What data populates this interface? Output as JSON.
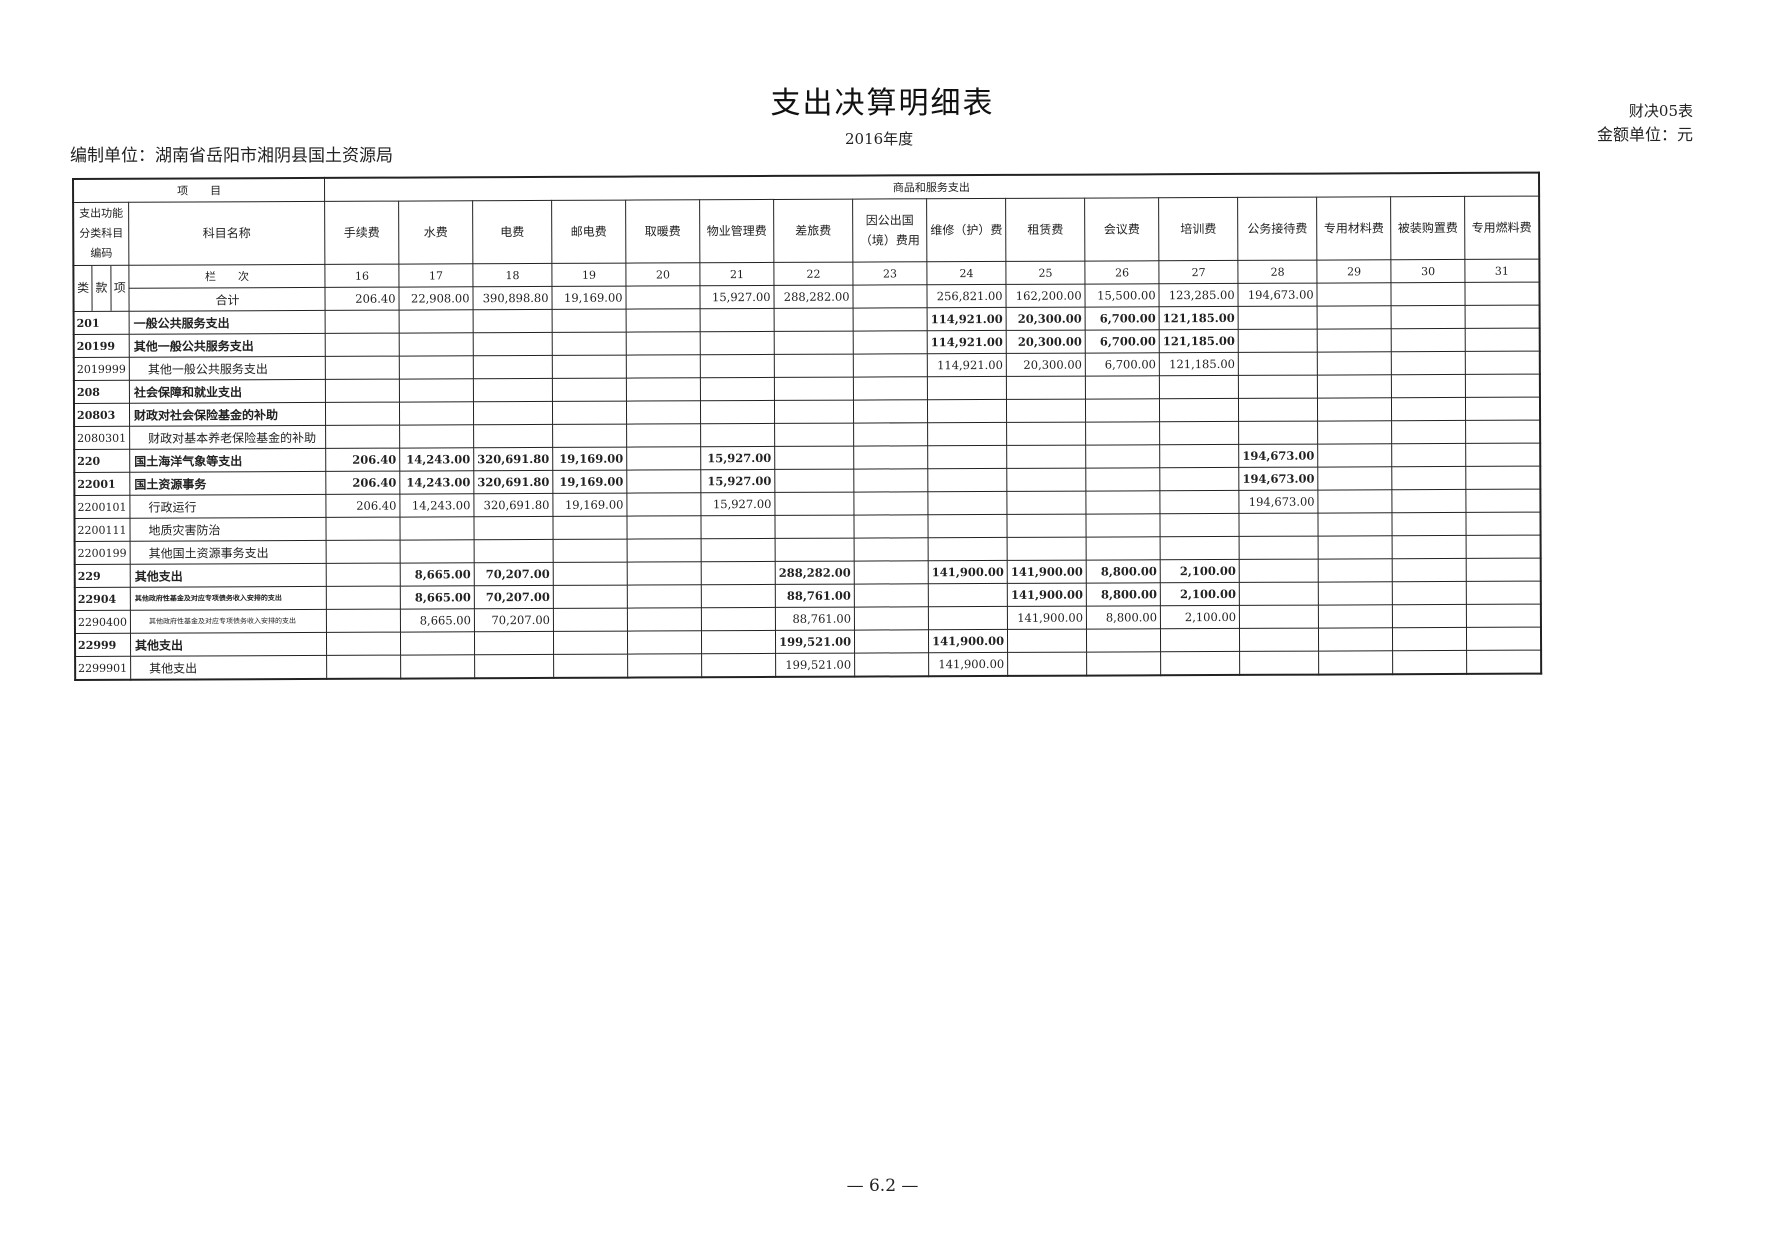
{
  "header": {
    "title": "支出决算明细表",
    "year": "2016年度",
    "form_no": "财决05表",
    "unit": "金额单位：元",
    "org": "编制单位：湖南省岳阳市湘阴县国土资源局"
  },
  "table": {
    "item_header": "项　　目",
    "group_header": "商品和服务支出",
    "code_header": "支出功能分类科目编码",
    "name_header": "科目名称",
    "lkx": [
      "类",
      "款",
      "项"
    ],
    "lanci_label": "栏　　次",
    "columns": [
      {
        "name": "手续费",
        "no": "16"
      },
      {
        "name": "水费",
        "no": "17"
      },
      {
        "name": "电费",
        "no": "18"
      },
      {
        "name": "邮电费",
        "no": "19"
      },
      {
        "name": "取暖费",
        "no": "20"
      },
      {
        "name": "物业管理费",
        "no": "21"
      },
      {
        "name": "差旅费",
        "no": "22"
      },
      {
        "name": "因公出国（境）费用",
        "no": "23"
      },
      {
        "name": "维修（护）费",
        "no": "24"
      },
      {
        "name": "租赁费",
        "no": "25"
      },
      {
        "name": "会议费",
        "no": "26"
      },
      {
        "name": "培训费",
        "no": "27"
      },
      {
        "name": "公务接待费",
        "no": "28"
      },
      {
        "name": "专用材料费",
        "no": "29"
      },
      {
        "name": "被装购置费",
        "no": "30"
      },
      {
        "name": "专用燃料费",
        "no": "31"
      }
    ],
    "rows": [
      {
        "code": "",
        "name": "合计",
        "level": "total",
        "values": [
          "206.40",
          "22,908.00",
          "390,898.80",
          "19,169.00",
          "",
          "15,927.00",
          "288,282.00",
          "",
          "256,821.00",
          "162,200.00",
          "15,500.00",
          "123,285.00",
          "194,673.00",
          "",
          "",
          ""
        ]
      },
      {
        "code": "201",
        "name": "一般公共服务支出",
        "level": "bold",
        "values": [
          "",
          "",
          "",
          "",
          "",
          "",
          "",
          "",
          "114,921.00",
          "20,300.00",
          "6,700.00",
          "121,185.00",
          "",
          "",
          "",
          ""
        ]
      },
      {
        "code": "20199",
        "name": "其他一般公共服务支出",
        "level": "bold",
        "values": [
          "",
          "",
          "",
          "",
          "",
          "",
          "",
          "",
          "114,921.00",
          "20,300.00",
          "6,700.00",
          "121,185.00",
          "",
          "",
          "",
          ""
        ]
      },
      {
        "code": "2019999",
        "name": "其他一般公共服务支出",
        "level": "sub",
        "values": [
          "",
          "",
          "",
          "",
          "",
          "",
          "",
          "",
          "114,921.00",
          "20,300.00",
          "6,700.00",
          "121,185.00",
          "",
          "",
          "",
          ""
        ]
      },
      {
        "code": "208",
        "name": "社会保障和就业支出",
        "level": "bold",
        "values": [
          "",
          "",
          "",
          "",
          "",
          "",
          "",
          "",
          "",
          "",
          "",
          "",
          "",
          "",
          "",
          ""
        ]
      },
      {
        "code": "20803",
        "name": "财政对社会保险基金的补助",
        "level": "bold",
        "values": [
          "",
          "",
          "",
          "",
          "",
          "",
          "",
          "",
          "",
          "",
          "",
          "",
          "",
          "",
          "",
          ""
        ]
      },
      {
        "code": "2080301",
        "name": "财政对基本养老保险基金的补助",
        "level": "sub",
        "values": [
          "",
          "",
          "",
          "",
          "",
          "",
          "",
          "",
          "",
          "",
          "",
          "",
          "",
          "",
          "",
          ""
        ]
      },
      {
        "code": "220",
        "name": "国土海洋气象等支出",
        "level": "bold",
        "values": [
          "206.40",
          "14,243.00",
          "320,691.80",
          "19,169.00",
          "",
          "15,927.00",
          "",
          "",
          "",
          "",
          "",
          "",
          "194,673.00",
          "",
          "",
          ""
        ]
      },
      {
        "code": "22001",
        "name": "国土资源事务",
        "level": "bold",
        "values": [
          "206.40",
          "14,243.00",
          "320,691.80",
          "19,169.00",
          "",
          "15,927.00",
          "",
          "",
          "",
          "",
          "",
          "",
          "194,673.00",
          "",
          "",
          ""
        ]
      },
      {
        "code": "2200101",
        "name": "行政运行",
        "level": "sub",
        "values": [
          "206.40",
          "14,243.00",
          "320,691.80",
          "19,169.00",
          "",
          "15,927.00",
          "",
          "",
          "",
          "",
          "",
          "",
          "194,673.00",
          "",
          "",
          ""
        ]
      },
      {
        "code": "2200111",
        "name": "地质灾害防治",
        "level": "sub",
        "values": [
          "",
          "",
          "",
          "",
          "",
          "",
          "",
          "",
          "",
          "",
          "",
          "",
          "",
          "",
          "",
          ""
        ]
      },
      {
        "code": "2200199",
        "name": "其他国土资源事务支出",
        "level": "sub",
        "values": [
          "",
          "",
          "",
          "",
          "",
          "",
          "",
          "",
          "",
          "",
          "",
          "",
          "",
          "",
          "",
          ""
        ]
      },
      {
        "code": "229",
        "name": "其他支出",
        "level": "bold",
        "values": [
          "",
          "8,665.00",
          "70,207.00",
          "",
          "",
          "",
          "288,282.00",
          "",
          "141,900.00",
          "141,900.00",
          "8,800.00",
          "2,100.00",
          "",
          "",
          "",
          ""
        ]
      },
      {
        "code": "22904",
        "name": "其他政府性基金及对应专项债务收入安排的支出",
        "level": "bold tiny",
        "values": [
          "",
          "8,665.00",
          "70,207.00",
          "",
          "",
          "",
          "88,761.00",
          "",
          "",
          "141,900.00",
          "8,800.00",
          "2,100.00",
          "",
          "",
          "",
          ""
        ]
      },
      {
        "code": "2290400",
        "name": "其他政府性基金及对应专项债务收入安排的支出",
        "level": "sub tiny",
        "values": [
          "",
          "8,665.00",
          "70,207.00",
          "",
          "",
          "",
          "88,761.00",
          "",
          "",
          "141,900.00",
          "8,800.00",
          "2,100.00",
          "",
          "",
          "",
          ""
        ]
      },
      {
        "code": "22999",
        "name": "其他支出",
        "level": "bold",
        "values": [
          "",
          "",
          "",
          "",
          "",
          "",
          "199,521.00",
          "",
          "141,900.00",
          "",
          "",
          "",
          "",
          "",
          "",
          ""
        ]
      },
      {
        "code": "2299901",
        "name": "其他支出",
        "level": "sub",
        "values": [
          "",
          "",
          "",
          "",
          "",
          "",
          "199,521.00",
          "",
          "141,900.00",
          "",
          "",
          "",
          "",
          "",
          "",
          ""
        ]
      }
    ]
  },
  "footer": {
    "page": "— 6.2 —"
  }
}
